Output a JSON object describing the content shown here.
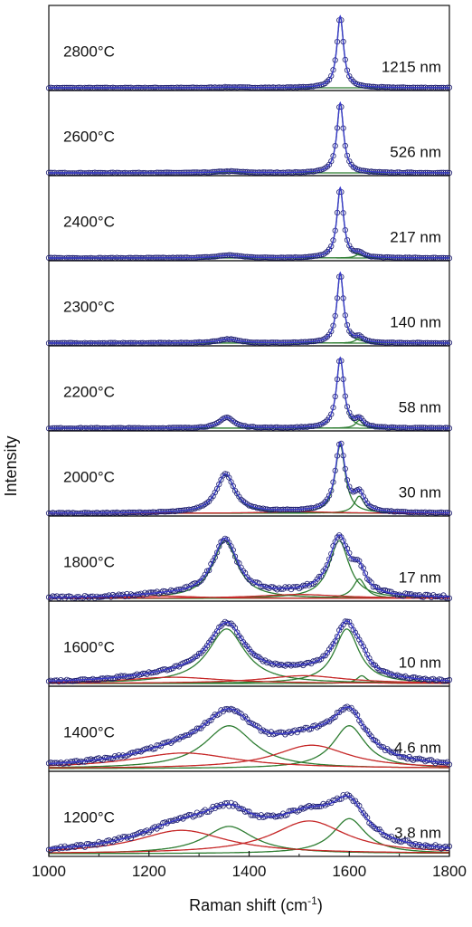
{
  "chart_data": {
    "type": "line",
    "xlabel": "Raman shift (cm",
    "xlabel_sup": "-1",
    "xlabel_end": ")",
    "ylabel": "Intensity",
    "xlim": [
      1000,
      1800
    ],
    "x_ticks": [
      1000,
      1200,
      1400,
      1600,
      1800
    ],
    "colors": {
      "data": "#1a1a6e",
      "fit": "#3a3acc",
      "g_band": "#2e7d32",
      "d_band": "#c62828"
    },
    "panels": [
      {
        "temperature": "2800°C",
        "size": "1215 nm",
        "peaks": [
          {
            "x0": 1582,
            "h": 0.92,
            "w": 8,
            "band": "g"
          },
          {
            "x0": 1360,
            "h": 0.008,
            "w": 30,
            "band": "g"
          }
        ],
        "noise": 0.004
      },
      {
        "temperature": "2600°C",
        "size": "526 nm",
        "peaks": [
          {
            "x0": 1582,
            "h": 0.9,
            "w": 8,
            "band": "g"
          },
          {
            "x0": 1360,
            "h": 0.02,
            "w": 30,
            "band": "g"
          }
        ],
        "noise": 0.004
      },
      {
        "temperature": "2400°C",
        "size": "217 nm",
        "peaks": [
          {
            "x0": 1582,
            "h": 0.9,
            "w": 8,
            "band": "g"
          },
          {
            "x0": 1360,
            "h": 0.035,
            "w": 28,
            "band": "g"
          },
          {
            "x0": 1620,
            "h": 0.05,
            "w": 9,
            "band": "g"
          }
        ],
        "noise": 0.004
      },
      {
        "temperature": "2300°C",
        "size": "140 nm",
        "peaks": [
          {
            "x0": 1582,
            "h": 0.9,
            "w": 8,
            "band": "g"
          },
          {
            "x0": 1358,
            "h": 0.05,
            "w": 25,
            "band": "g"
          },
          {
            "x0": 1620,
            "h": 0.06,
            "w": 9,
            "band": "g"
          }
        ],
        "noise": 0.004
      },
      {
        "temperature": "2200°C",
        "size": "58 nm",
        "peaks": [
          {
            "x0": 1582,
            "h": 0.9,
            "w": 9,
            "band": "g"
          },
          {
            "x0": 1355,
            "h": 0.14,
            "w": 17,
            "band": "g"
          },
          {
            "x0": 1620,
            "h": 0.1,
            "w": 9,
            "band": "g"
          }
        ],
        "noise": 0.005
      },
      {
        "temperature": "2000°C",
        "size": "30 nm",
        "peaks": [
          {
            "x0": 1582,
            "h": 0.88,
            "w": 12,
            "band": "g"
          },
          {
            "x0": 1353,
            "h": 0.5,
            "w": 22,
            "band": "g"
          },
          {
            "x0": 1620,
            "h": 0.22,
            "w": 12,
            "band": "g"
          },
          {
            "x0": 1500,
            "h": 0.02,
            "w": 80,
            "band": "d"
          }
        ],
        "noise": 0.006
      },
      {
        "temperature": "1800°C",
        "size": "17 nm",
        "peaks": [
          {
            "x0": 1580,
            "h": 0.74,
            "w": 24,
            "band": "g"
          },
          {
            "x0": 1352,
            "h": 0.74,
            "w": 30,
            "band": "g"
          },
          {
            "x0": 1620,
            "h": 0.25,
            "w": 15,
            "band": "g"
          },
          {
            "x0": 1500,
            "h": 0.05,
            "w": 100,
            "band": "d"
          },
          {
            "x0": 1230,
            "h": 0.03,
            "w": 80,
            "band": "d"
          }
        ],
        "noise": 0.02
      },
      {
        "temperature": "1600°C",
        "size": "10 nm",
        "peaks": [
          {
            "x0": 1595,
            "h": 0.7,
            "w": 30,
            "band": "g"
          },
          {
            "x0": 1355,
            "h": 0.7,
            "w": 45,
            "band": "g"
          },
          {
            "x0": 1625,
            "h": 0.1,
            "w": 12,
            "band": "g"
          },
          {
            "x0": 1510,
            "h": 0.1,
            "w": 100,
            "band": "d"
          },
          {
            "x0": 1250,
            "h": 0.08,
            "w": 120,
            "band": "d"
          }
        ],
        "noise": 0.015
      },
      {
        "temperature": "1400°C",
        "size": "4.6 nm",
        "peaks": [
          {
            "x0": 1600,
            "h": 0.55,
            "w": 40,
            "band": "g"
          },
          {
            "x0": 1360,
            "h": 0.55,
            "w": 60,
            "band": "g"
          },
          {
            "x0": 1525,
            "h": 0.3,
            "w": 90,
            "band": "d"
          },
          {
            "x0": 1270,
            "h": 0.2,
            "w": 130,
            "band": "d"
          }
        ],
        "noise": 0.02
      },
      {
        "temperature": "1200°C",
        "size": "3.8 nm",
        "peaks": [
          {
            "x0": 1600,
            "h": 0.45,
            "w": 40,
            "band": "g"
          },
          {
            "x0": 1360,
            "h": 0.35,
            "w": 60,
            "band": "g"
          },
          {
            "x0": 1520,
            "h": 0.42,
            "w": 90,
            "band": "d"
          },
          {
            "x0": 1265,
            "h": 0.3,
            "w": 110,
            "band": "d"
          }
        ],
        "noise": 0.025
      }
    ]
  }
}
